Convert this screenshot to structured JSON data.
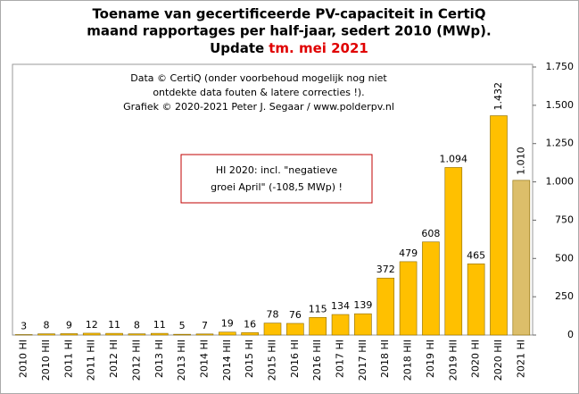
{
  "chart_data": {
    "type": "bar",
    "title_lines": [
      "Toename van gecertificeerde PV-capaciteit in CertiQ",
      "maand rapportages per half-jaar, sedert 2010 (MWp)."
    ],
    "update_prefix": "Update",
    "update_highlight": "tm. mei 2021",
    "update_color": "#e00000",
    "source_lines": [
      "Data © CertiQ (onder voorbehoud mogelijk  nog niet",
      "ontdekte data fouten & latere correcties !).",
      "Grafiek  © 2020-2021 Peter J. Segaar / www.polderpv.nl"
    ],
    "annotation_lines": [
      "HI 2020:  incl. \"negatieve",
      "groei April\"  (-108,5 MWp)  !"
    ],
    "categories": [
      "2010 HI",
      "2010 HII",
      "2011 HI",
      "2011 HII",
      "2012 HI",
      "2012 HII",
      "2013 HI",
      "2013 HII",
      "2014 HI",
      "2014 HII",
      "2015 HI",
      "2015 HII",
      "2016 HI",
      "2016 HII",
      "2017 HI",
      "2017 HII",
      "2018 HI",
      "2018 HII",
      "2019 HI",
      "2019 HII",
      "2020 HI",
      "2020 HII",
      "2021 HI"
    ],
    "values": [
      3,
      8,
      9,
      12,
      11,
      8,
      11,
      5,
      7,
      19,
      16,
      78,
      76,
      115,
      134,
      139,
      372,
      479,
      608,
      1094,
      465,
      1432,
      1010
    ],
    "value_labels": [
      "3",
      "8",
      "9",
      "12",
      "11",
      "8",
      "11",
      "5",
      "7",
      "19",
      "16",
      "78",
      "76",
      "115",
      "134",
      "139",
      "372",
      "479",
      "608",
      "1.094",
      "465",
      "1.432",
      "1.010"
    ],
    "colors": [
      "#ffc000",
      "#ffc000",
      "#ffc000",
      "#ffc000",
      "#ffc000",
      "#ffc000",
      "#ffc000",
      "#ffc000",
      "#ffc000",
      "#ffc000",
      "#ffc000",
      "#ffc000",
      "#ffc000",
      "#ffc000",
      "#ffc000",
      "#ffc000",
      "#ffc000",
      "#ffc000",
      "#ffc000",
      "#ffc000",
      "#ffc000",
      "#ffc000",
      "#dcbe6a"
    ],
    "value_label_colors": [
      "#000000",
      "#000000",
      "#000000",
      "#000000",
      "#000000",
      "#000000",
      "#000000",
      "#000000",
      "#000000",
      "#000000",
      "#000000",
      "#000000",
      "#000000",
      "#000000",
      "#000000",
      "#000000",
      "#000000",
      "#000000",
      "#000000",
      "#000000",
      "#000000",
      "#c00000",
      "#888888"
    ],
    "ylim": [
      0,
      1750
    ],
    "yticks": [
      0,
      250,
      500,
      750,
      {
        "value": 1000,
        "label": "1.000"
      },
      {
        "value": 1250,
        "label": "1.250"
      },
      {
        "value": 1500,
        "label": "1.500"
      },
      {
        "value": 1750,
        "label": "1.750"
      }
    ],
    "y_axis_side": "right",
    "grid": false
  }
}
